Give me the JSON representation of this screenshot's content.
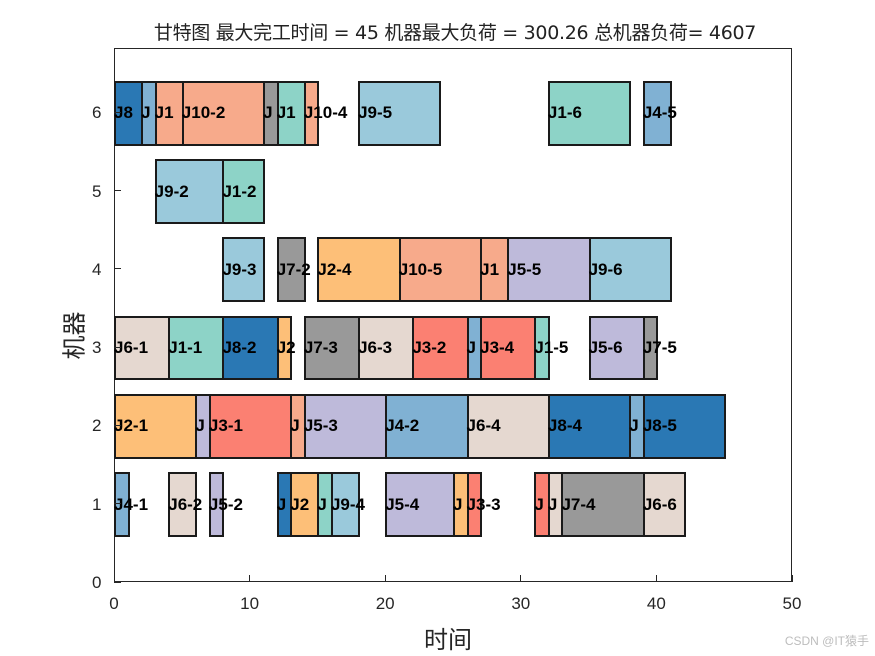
{
  "chart_data": {
    "type": "gantt",
    "title": "甘特图 最大完工时间 = 45 机器最大负荷 = 300.26 总机器负荷= 4607",
    "xlabel": "时间",
    "ylabel": "机器",
    "xlim": [
      0,
      50
    ],
    "ylim": [
      0,
      6.82
    ],
    "xticks": [
      0,
      10,
      20,
      30,
      40,
      50
    ],
    "yticks": [
      0,
      1,
      2,
      3,
      4,
      5,
      6
    ],
    "bar_height": 0.8,
    "grid": false,
    "legend": null,
    "job_colors": {
      "J1": "#8dd3c7",
      "J2": "#fdbf78",
      "J3": "#fb8072",
      "J4": "#80b1d3",
      "J5": "#bebada",
      "J6": "#e5d8d0",
      "J7": "#999999",
      "J8": "#2a78b4",
      "J9": "#9ac9db",
      "J10": "#f7aa8b"
    },
    "tasks": [
      {
        "machine": 6,
        "job": "J8",
        "label": "J8",
        "start": 0,
        "end": 2
      },
      {
        "machine": 6,
        "job": "J4",
        "label": "J",
        "start": 2,
        "end": 3
      },
      {
        "machine": 6,
        "job": "J10",
        "label": "J1",
        "start": 3,
        "end": 5
      },
      {
        "machine": 6,
        "job": "J10",
        "label": "J10-2",
        "start": 5,
        "end": 11
      },
      {
        "machine": 6,
        "job": "J7",
        "label": "J",
        "start": 11,
        "end": 12
      },
      {
        "machine": 6,
        "job": "J1",
        "label": "J1",
        "start": 12,
        "end": 14
      },
      {
        "machine": 6,
        "job": "J10",
        "label": "J10-4",
        "start": 14,
        "end": 15
      },
      {
        "machine": 6,
        "job": "J9",
        "label": "J9-5",
        "start": 18,
        "end": 24
      },
      {
        "machine": 6,
        "job": "J1",
        "label": "J1-6",
        "start": 32,
        "end": 38
      },
      {
        "machine": 6,
        "job": "J4",
        "label": "J4-5",
        "start": 39,
        "end": 41
      },
      {
        "machine": 5,
        "job": "J9",
        "label": "J9-2",
        "start": 3,
        "end": 8
      },
      {
        "machine": 5,
        "job": "J1",
        "label": "J1-2",
        "start": 8,
        "end": 11
      },
      {
        "machine": 4,
        "job": "J9",
        "label": "J9-3",
        "start": 8,
        "end": 11
      },
      {
        "machine": 4,
        "job": "J7",
        "label": "J7-2",
        "start": 12,
        "end": 14
      },
      {
        "machine": 4,
        "job": "J2",
        "label": "J2-4",
        "start": 15,
        "end": 21
      },
      {
        "machine": 4,
        "job": "J10",
        "label": "J10-5",
        "start": 21,
        "end": 27
      },
      {
        "machine": 4,
        "job": "J10",
        "label": "J1",
        "start": 27,
        "end": 29
      },
      {
        "machine": 4,
        "job": "J5",
        "label": "J5-5",
        "start": 29,
        "end": 35
      },
      {
        "machine": 4,
        "job": "J9",
        "label": "J9-6",
        "start": 35,
        "end": 41
      },
      {
        "machine": 3,
        "job": "J6",
        "label": "J6-1",
        "start": 0,
        "end": 4
      },
      {
        "machine": 3,
        "job": "J1",
        "label": "J1-1",
        "start": 4,
        "end": 8
      },
      {
        "machine": 3,
        "job": "J8",
        "label": "J8-2",
        "start": 8,
        "end": 12
      },
      {
        "machine": 3,
        "job": "J2",
        "label": "J2",
        "start": 12,
        "end": 13
      },
      {
        "machine": 3,
        "job": "J7",
        "label": "J7-3",
        "start": 14,
        "end": 18
      },
      {
        "machine": 3,
        "job": "J6",
        "label": "J6-3",
        "start": 18,
        "end": 22
      },
      {
        "machine": 3,
        "job": "J3",
        "label": "J3-2",
        "start": 22,
        "end": 26
      },
      {
        "machine": 3,
        "job": "J4",
        "label": "J",
        "start": 26,
        "end": 27
      },
      {
        "machine": 3,
        "job": "J3",
        "label": "J3-4",
        "start": 27,
        "end": 31
      },
      {
        "machine": 3,
        "job": "J1",
        "label": "J1-5",
        "start": 31,
        "end": 32
      },
      {
        "machine": 3,
        "job": "J5",
        "label": "J5-6",
        "start": 35,
        "end": 39
      },
      {
        "machine": 3,
        "job": "J7",
        "label": "J7-5",
        "start": 39,
        "end": 40
      },
      {
        "machine": 2,
        "job": "J2",
        "label": "J2-1",
        "start": 0,
        "end": 6
      },
      {
        "machine": 2,
        "job": "J5",
        "label": "J",
        "start": 6,
        "end": 7
      },
      {
        "machine": 2,
        "job": "J3",
        "label": "J3-1",
        "start": 7,
        "end": 13
      },
      {
        "machine": 2,
        "job": "J10",
        "label": "J",
        "start": 13,
        "end": 14
      },
      {
        "machine": 2,
        "job": "J5",
        "label": "J5-3",
        "start": 14,
        "end": 20
      },
      {
        "machine": 2,
        "job": "J4",
        "label": "J4-2",
        "start": 20,
        "end": 26
      },
      {
        "machine": 2,
        "job": "J6",
        "label": "J6-4",
        "start": 26,
        "end": 32
      },
      {
        "machine": 2,
        "job": "J8",
        "label": "J8-4",
        "start": 32,
        "end": 38
      },
      {
        "machine": 2,
        "job": "J4",
        "label": "J",
        "start": 38,
        "end": 39
      },
      {
        "machine": 2,
        "job": "J8",
        "label": "J8-5",
        "start": 39,
        "end": 45
      },
      {
        "machine": 1,
        "job": "J4",
        "label": "J4-1",
        "start": 0,
        "end": 1
      },
      {
        "machine": 1,
        "job": "J6",
        "label": "J6-2",
        "start": 4,
        "end": 6
      },
      {
        "machine": 1,
        "job": "J5",
        "label": "J5-2",
        "start": 7,
        "end": 8
      },
      {
        "machine": 1,
        "job": "J8",
        "label": "J",
        "start": 12,
        "end": 13
      },
      {
        "machine": 1,
        "job": "J2",
        "label": "J2",
        "start": 13,
        "end": 15
      },
      {
        "machine": 1,
        "job": "J1",
        "label": "J",
        "start": 15,
        "end": 16
      },
      {
        "machine": 1,
        "job": "J9",
        "label": "J9-4",
        "start": 16,
        "end": 18
      },
      {
        "machine": 1,
        "job": "J5",
        "label": "J5-4",
        "start": 20,
        "end": 25
      },
      {
        "machine": 1,
        "job": "J2",
        "label": "J",
        "start": 25,
        "end": 26
      },
      {
        "machine": 1,
        "job": "J3",
        "label": "J3-3",
        "start": 26,
        "end": 27
      },
      {
        "machine": 1,
        "job": "J3",
        "label": "J",
        "start": 31,
        "end": 32
      },
      {
        "machine": 1,
        "job": "J6",
        "label": "J",
        "start": 32,
        "end": 33
      },
      {
        "machine": 1,
        "job": "J7",
        "label": "J7-4",
        "start": 33,
        "end": 39
      },
      {
        "machine": 1,
        "job": "J6",
        "label": "J6-6",
        "start": 39,
        "end": 42
      }
    ],
    "summary": {
      "makespan": 45,
      "max_machine_load": 300.26,
      "total_machine_load": 4607
    }
  },
  "watermark": "CSDN @IT猿手"
}
